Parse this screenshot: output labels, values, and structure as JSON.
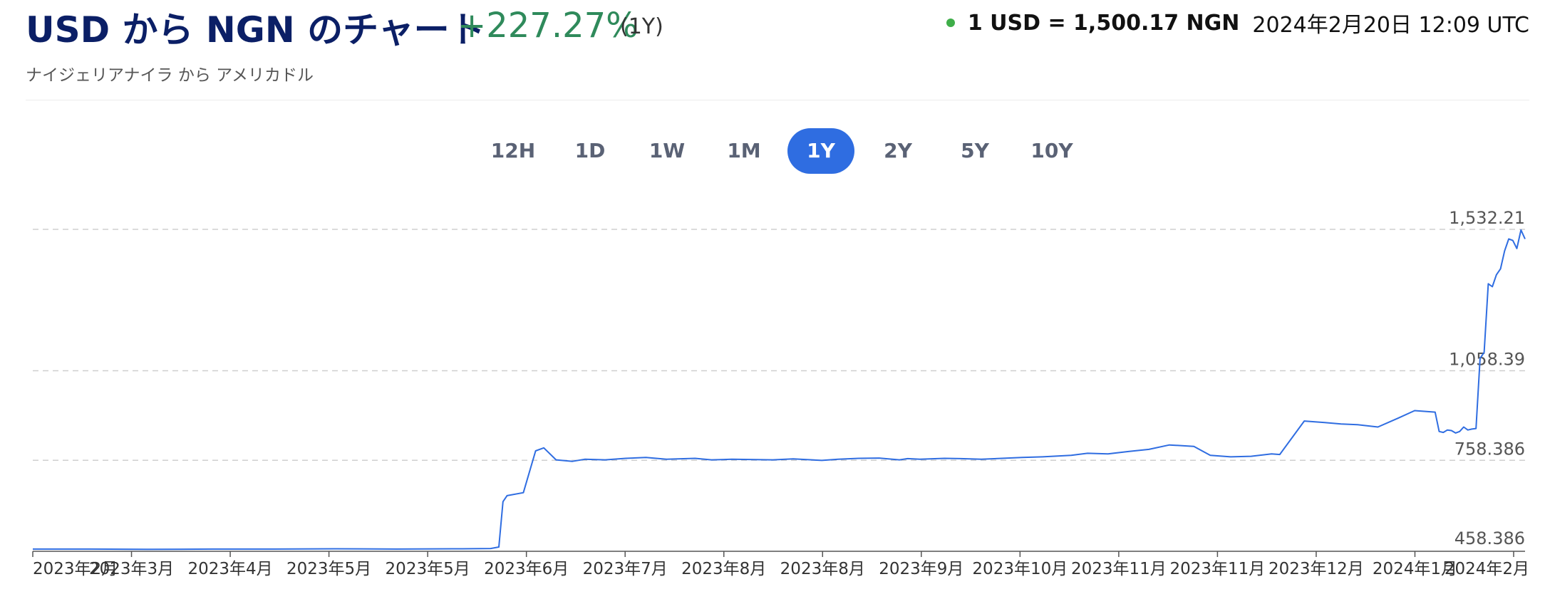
{
  "header": {
    "title": "USD から NGN のチャート",
    "change": "+227.27%",
    "period": "(1Y)",
    "rate": "1 USD = 1,500.17 NGN",
    "timestamp": "2024年2月20日 12:09 UTC",
    "subtitle": "ナイジェリアナイラ から アメリカドル",
    "status_color": "#3fae49"
  },
  "tabs": [
    {
      "label": "12H",
      "active": false
    },
    {
      "label": "1D",
      "active": false
    },
    {
      "label": "1W",
      "active": false
    },
    {
      "label": "1M",
      "active": false
    },
    {
      "label": "1Y",
      "active": true
    },
    {
      "label": "2Y",
      "active": false
    },
    {
      "label": "5Y",
      "active": false
    },
    {
      "label": "10Y",
      "active": false
    }
  ],
  "chart_data": {
    "type": "line",
    "title": "",
    "xlabel": "",
    "ylabel": "",
    "ylim": [
      458.386,
      1532.21
    ],
    "yticks": [
      458.386,
      758.386,
      1058.39,
      1532.21
    ],
    "ytick_labels": [
      "458.386",
      "758.386",
      "1,058.39",
      "1,532.21"
    ],
    "x_tick_labels": [
      "2023年2月",
      "2023年3月",
      "2023年4月",
      "2023年5月",
      "2023年5月",
      "2023年6月",
      "2023年7月",
      "2023年8月",
      "2023年8月",
      "2023年9月",
      "2023年10月",
      "2023年11月",
      "2023年11月",
      "2023年12月",
      "2024年1月",
      "2024年2月"
    ],
    "x_range": [
      "2023-02-20",
      "2024-02-20"
    ],
    "grid": "horizontal-dashed",
    "line_color": "#2f6de1",
    "series": [
      {
        "x": [
          "2023-02-20",
          "2023-03-05",
          "2023-03-20",
          "2023-04-05",
          "2023-04-20",
          "2023-05-05",
          "2023-05-20",
          "2023-06-05",
          "2023-06-12",
          "2023-06-14",
          "2023-06-15",
          "2023-06-16",
          "2023-06-20",
          "2023-06-23",
          "2023-06-25",
          "2023-06-28",
          "2023-07-02",
          "2023-07-05",
          "2023-07-10",
          "2023-07-15",
          "2023-07-20",
          "2023-07-25",
          "2023-08-01",
          "2023-08-05",
          "2023-08-10",
          "2023-08-20",
          "2023-08-25",
          "2023-09-01",
          "2023-09-05",
          "2023-09-10",
          "2023-09-15",
          "2023-09-20",
          "2023-09-22",
          "2023-09-25",
          "2023-10-01",
          "2023-10-05",
          "2023-10-10",
          "2023-10-15",
          "2023-10-20",
          "2023-10-25",
          "2023-11-01",
          "2023-11-05",
          "2023-11-10",
          "2023-11-15",
          "2023-11-20",
          "2023-11-25",
          "2023-12-01",
          "2023-12-05",
          "2023-12-10",
          "2023-12-15",
          "2023-12-20",
          "2023-12-22",
          "2023-12-28",
          "2024-01-02",
          "2024-01-06",
          "2024-01-10",
          "2024-01-15",
          "2024-01-20",
          "2024-01-24",
          "2024-01-29",
          "2024-01-30",
          "2024-01-31",
          "2024-02-01",
          "2024-02-02",
          "2024-02-03",
          "2024-02-04",
          "2024-02-05",
          "2024-02-06",
          "2024-02-07",
          "2024-02-08",
          "2024-02-09",
          "2024-02-10",
          "2024-02-11",
          "2024-02-12",
          "2024-02-13",
          "2024-02-14",
          "2024-02-15",
          "2024-02-16",
          "2024-02-17",
          "2024-02-18",
          "2024-02-19",
          "2024-02-20"
        ],
        "values": [
          461,
          461,
          460,
          461,
          461,
          462,
          461,
          462,
          463,
          468,
          620,
          640,
          650,
          790,
          800,
          760,
          755,
          762,
          760,
          765,
          768,
          762,
          765,
          760,
          762,
          760,
          763,
          758,
          762,
          765,
          766,
          760,
          764,
          762,
          765,
          764,
          762,
          765,
          768,
          770,
          775,
          782,
          780,
          788,
          795,
          810,
          805,
          775,
          770,
          772,
          780,
          778,
          890,
          885,
          880,
          878,
          870,
          900,
          925,
          920,
          855,
          852,
          860,
          858,
          850,
          855,
          870,
          860,
          863,
          865,
          1100,
          1120,
          1350,
          1340,
          1380,
          1400,
          1460,
          1500,
          1495,
          1468,
          1530,
          1500
        ]
      }
    ]
  }
}
